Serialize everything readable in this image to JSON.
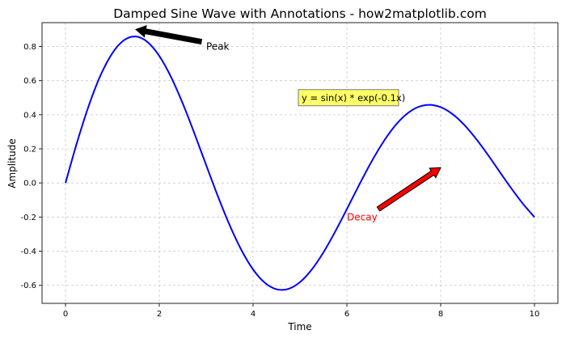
{
  "chart_data": {
    "type": "line",
    "title": "Damped Sine Wave with Annotations - how2matplotlib.com",
    "xlabel": "Time",
    "ylabel": "Amplitude",
    "xlim": [
      -0.5,
      10.5
    ],
    "ylim": [
      -0.706,
      0.94
    ],
    "grid": true,
    "xticks": [
      0,
      2,
      4,
      6,
      8,
      10
    ],
    "xtick_labels": [
      "0",
      "2",
      "4",
      "6",
      "8",
      "10"
    ],
    "yticks": [
      -0.6,
      -0.4,
      -0.2,
      0.0,
      0.2,
      0.4,
      0.6,
      0.8
    ],
    "ytick_labels": [
      "-0.6",
      "-0.4",
      "-0.2",
      "0.0",
      "0.2",
      "0.4",
      "0.6",
      "0.8"
    ],
    "series": [
      {
        "name": "y = sin(x) * exp(-0.1x)",
        "color": "#0000ff",
        "x": [
          0,
          0.25,
          0.5,
          0.75,
          1,
          1.25,
          1.5,
          1.75,
          2,
          2.25,
          2.5,
          2.75,
          3,
          3.25,
          3.5,
          3.75,
          4,
          4.25,
          4.5,
          4.75,
          5,
          5.25,
          5.5,
          5.75,
          6,
          6.25,
          6.5,
          6.75,
          7,
          7.25,
          7.5,
          7.75,
          8,
          8.25,
          8.5,
          8.75,
          9,
          9.25,
          9.5,
          9.75,
          10
        ],
        "y": [
          0,
          0.2413,
          0.456,
          0.6324,
          0.7614,
          0.8375,
          0.8586,
          0.8261,
          0.7445,
          0.6213,
          0.4661,
          0.2899,
          0.1045,
          -0.0782,
          -0.2472,
          -0.3929,
          -0.5073,
          -0.5851,
          -0.6233,
          -0.6215,
          -0.5816,
          -0.5081,
          -0.407,
          -0.286,
          -0.1533,
          -0.0178,
          0.1123,
          0.2291,
          0.3263,
          0.3986,
          0.4431,
          0.4582,
          0.4445,
          0.4043,
          0.3413,
          0.2604,
          0.1676,
          0.0689,
          -0.0291,
          -0.1205,
          -0.2001
        ]
      }
    ],
    "annotations": [
      {
        "text": "Peak",
        "xy": [
          1.5,
          0.9
        ],
        "xytext": [
          3.0,
          0.8
        ],
        "color": "#000000",
        "arrow_color": "#000000"
      },
      {
        "text": "Decay",
        "xy": [
          8.0,
          0.09
        ],
        "xytext": [
          6.0,
          -0.2
        ],
        "color": "#ff0000",
        "arrow_color": "#ff0000"
      }
    ],
    "textbox": {
      "text": "y = sin(x) * exp(-0.1x)",
      "x": 5.0,
      "y": 0.5,
      "facecolor": "#ffff66"
    }
  }
}
